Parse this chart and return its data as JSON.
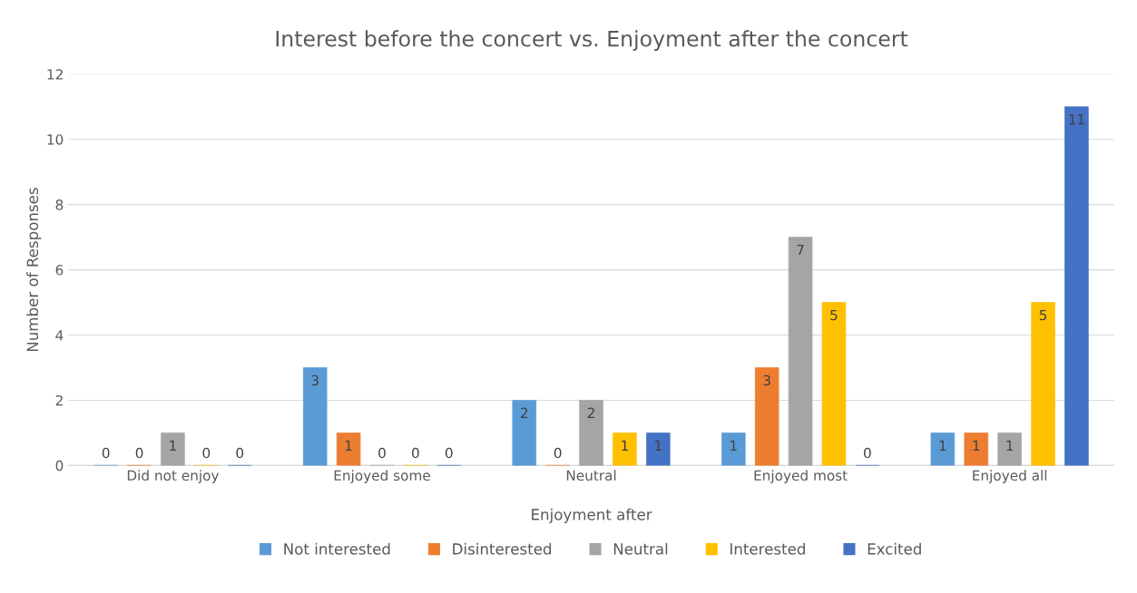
{
  "chart_data": {
    "type": "bar",
    "title": "Interest before the concert vs. Enjoyment after the concert",
    "xlabel": "Enjoyment after",
    "ylabel": "Number of Responses",
    "categories": [
      "Did not enjoy",
      "Enjoyed some",
      "Neutral",
      "Enjoyed most",
      "Enjoyed all"
    ],
    "series": [
      {
        "name": "Not interested",
        "color": "#5b9bd5",
        "values": [
          0,
          3,
          2,
          1,
          1
        ]
      },
      {
        "name": "Disinterested",
        "color": "#ed7d31",
        "values": [
          0,
          1,
          0,
          3,
          1
        ]
      },
      {
        "name": "Neutral",
        "color": "#a5a5a5",
        "values": [
          1,
          0,
          2,
          7,
          1
        ]
      },
      {
        "name": "Interested",
        "color": "#ffc000",
        "values": [
          0,
          0,
          1,
          5,
          5
        ]
      },
      {
        "name": "Excited",
        "color": "#4472c4",
        "values": [
          0,
          0,
          1,
          0,
          11
        ]
      }
    ],
    "ylim": [
      0,
      12
    ],
    "yticks": [
      0,
      2,
      4,
      6,
      8,
      10,
      12
    ],
    "grid": "y",
    "legend": "bottom",
    "data_labels": true
  }
}
